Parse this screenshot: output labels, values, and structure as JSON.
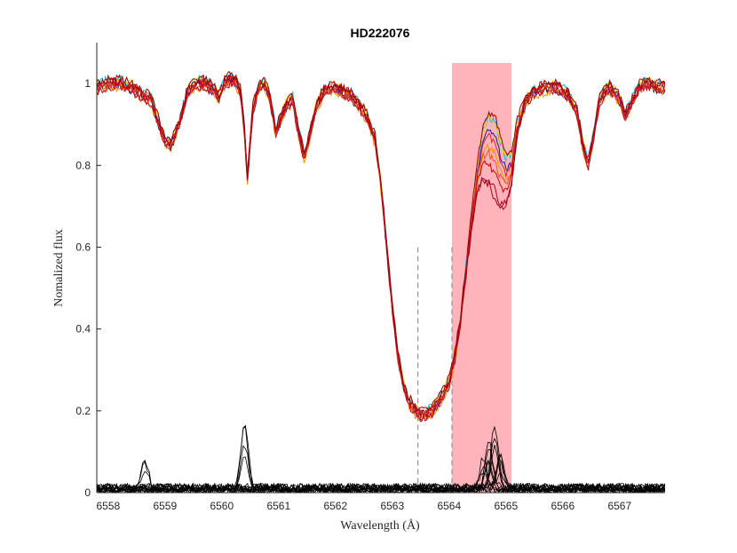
{
  "chart_data": {
    "type": "line",
    "title": "HD222076",
    "xlabel": "Wavelength (Å)",
    "ylabel": "Nomalized flux",
    "xlim": [
      6557.8,
      6567.8
    ],
    "ylim": [
      0,
      1.1
    ],
    "x_ticks": [
      6558,
      6559,
      6560,
      6561,
      6562,
      6563,
      6564,
      6565,
      6566,
      6567
    ],
    "x_tick_labels": [
      "6558",
      "6559",
      "6560",
      "6561",
      "6562",
      "6563",
      "6564",
      "6565",
      "6566",
      "6567"
    ],
    "y_ticks": [
      0,
      0.2,
      0.4,
      0.6,
      0.8,
      1
    ],
    "y_tick_labels": [
      "0",
      "0.2",
      "0.4",
      "0.6",
      "0.8",
      "1"
    ],
    "grid": false,
    "legend": "none",
    "highlight_band": {
      "x_start": 6564.05,
      "x_end": 6565.1,
      "y_top": 1.05,
      "color": "#ffb3ba"
    },
    "dashed_lines": [
      {
        "x": 6563.45,
        "y_top": 0.6,
        "color": "#999999"
      },
      {
        "x": 6564.05,
        "y_top": 0.6,
        "color": "#999999"
      }
    ],
    "series_colors": [
      "#00b2ee",
      "#1a1a8c",
      "#ffd700",
      "#ff8c00",
      "#e25822",
      "#cc0000",
      "#b3001b",
      "#990000",
      "#d62728",
      "#a0001a"
    ],
    "residual_color": "#000000",
    "mean_spectrum": {
      "x": [
        6557.8,
        6558.0,
        6558.2,
        6558.4,
        6558.6,
        6558.75,
        6558.9,
        6559.0,
        6559.1,
        6559.25,
        6559.4,
        6559.55,
        6559.7,
        6559.8,
        6559.95,
        6560.05,
        6560.15,
        6560.25,
        6560.33,
        6560.4,
        6560.45,
        6560.55,
        6560.65,
        6560.75,
        6560.85,
        6560.95,
        6561.05,
        6561.15,
        6561.25,
        6561.35,
        6561.45,
        6561.55,
        6561.65,
        6561.8,
        6561.95,
        6562.1,
        6562.25,
        6562.4,
        6562.55,
        6562.7,
        6562.8,
        6562.9,
        6563.0,
        6563.1,
        6563.2,
        6563.3,
        6563.4,
        6563.5,
        6563.6,
        6563.7,
        6563.8,
        6563.9,
        6564.0,
        6564.1,
        6564.2,
        6564.3,
        6564.4,
        6564.5,
        6564.6,
        6564.7,
        6564.8,
        6564.9,
        6565.0,
        6565.1,
        6565.2,
        6565.35,
        6565.5,
        6565.7,
        6565.9,
        6566.1,
        6566.25,
        6566.35,
        6566.45,
        6566.55,
        6566.65,
        6566.8,
        6566.9,
        6567.0,
        6567.1,
        6567.2,
        6567.35,
        6567.5,
        6567.65,
        6567.8
      ],
      "y": [
        0.99,
        1.0,
        1.0,
        0.99,
        0.97,
        0.96,
        0.9,
        0.86,
        0.85,
        0.9,
        0.98,
        1.0,
        1.0,
        0.99,
        0.97,
        1.0,
        1.01,
        1.0,
        0.98,
        0.88,
        0.77,
        0.94,
        0.99,
        1.0,
        0.96,
        0.88,
        0.92,
        0.95,
        0.96,
        0.88,
        0.82,
        0.87,
        0.94,
        0.98,
        0.99,
        0.98,
        0.97,
        0.95,
        0.92,
        0.86,
        0.75,
        0.6,
        0.45,
        0.33,
        0.26,
        0.22,
        0.2,
        0.19,
        0.19,
        0.2,
        0.22,
        0.24,
        0.27,
        0.33,
        0.42,
        0.55,
        0.68,
        0.8,
        0.88,
        0.91,
        0.9,
        0.85,
        0.81,
        0.82,
        0.9,
        0.96,
        0.98,
        0.99,
        0.99,
        0.97,
        0.93,
        0.85,
        0.8,
        0.88,
        0.96,
        0.99,
        0.98,
        0.96,
        0.92,
        0.95,
        0.99,
        1.0,
        0.99,
        0.99
      ]
    },
    "spectra_offsets": [
      {
        "dy": 0.01,
        "peak": 0.0
      },
      {
        "dy": -0.005,
        "peak": -0.02
      },
      {
        "dy": 0.008,
        "peak": 0.0
      },
      {
        "dy": -0.01,
        "peak": -0.06
      },
      {
        "dy": 0.0,
        "peak": -0.09
      },
      {
        "dy": 0.005,
        "peak": -0.12
      },
      {
        "dy": -0.008,
        "peak": -0.15
      },
      {
        "dy": 0.012,
        "peak": 0.01
      },
      {
        "dy": -0.003,
        "peak": -0.04
      },
      {
        "dy": 0.004,
        "peak": -0.18
      }
    ],
    "residual_peaks": [
      {
        "x": 6560.4,
        "y": 0.165
      },
      {
        "x": 6558.65,
        "y": 0.08
      },
      {
        "x": 6564.8,
        "y": 0.16
      },
      {
        "x": 6564.7,
        "y": 0.12
      },
      {
        "x": 6564.9,
        "y": 0.09
      },
      {
        "x": 6564.6,
        "y": 0.07
      }
    ]
  }
}
